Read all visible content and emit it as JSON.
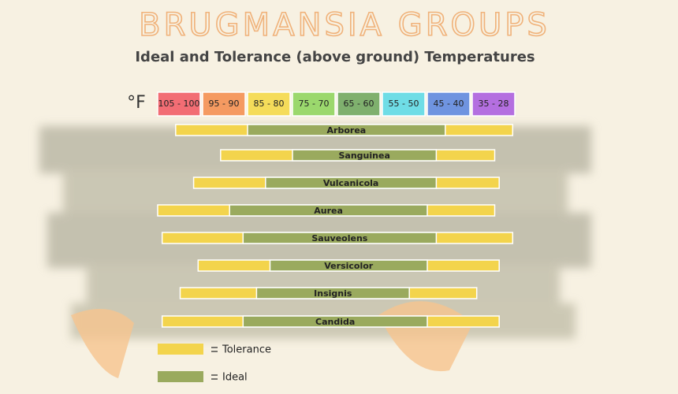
{
  "chart_data": {
    "type": "range-bar",
    "title": "BRUGMANSIA GROUPS",
    "subtitle": "Ideal and Tolerance (above ground) Temperatures",
    "x_label": "°F",
    "xlim": [
      105,
      25
    ],
    "bands": [
      {
        "label": "105 - 100",
        "color": "#f26d74"
      },
      {
        "label": "95 - 90",
        "color": "#f59a61"
      },
      {
        "label": "85 - 80",
        "color": "#f5dc5a"
      },
      {
        "label": "75 - 70",
        "color": "#9bd86d"
      },
      {
        "label": "65 - 60",
        "color": "#7fb06e"
      },
      {
        "label": "55 - 50",
        "color": "#6fdde6"
      },
      {
        "label": "45 - 40",
        "color": "#6f94e0"
      },
      {
        "label": "35 - 28",
        "color": "#b46fe0"
      }
    ],
    "categories": [
      "Arborea",
      "Sanguinea",
      "Vulcanicola",
      "Aurea",
      "Sauveolens",
      "Versicolor",
      "Insignis",
      "Candida"
    ],
    "series": [
      {
        "name": "Tolerance",
        "color": "#f3d44c",
        "values": [
          [
            101,
            26
          ],
          [
            91,
            30
          ],
          [
            97,
            29
          ],
          [
            105,
            30
          ],
          [
            104,
            26
          ],
          [
            96,
            29
          ],
          [
            100,
            34
          ],
          [
            104,
            29
          ]
        ]
      },
      {
        "name": "Ideal",
        "color": "#9aaa5e",
        "values": [
          [
            85,
            41
          ],
          [
            75,
            43
          ],
          [
            81,
            43
          ],
          [
            89,
            45
          ],
          [
            86,
            43
          ],
          [
            80,
            45
          ],
          [
            83,
            49
          ],
          [
            86,
            45
          ]
        ]
      }
    ]
  }
}
